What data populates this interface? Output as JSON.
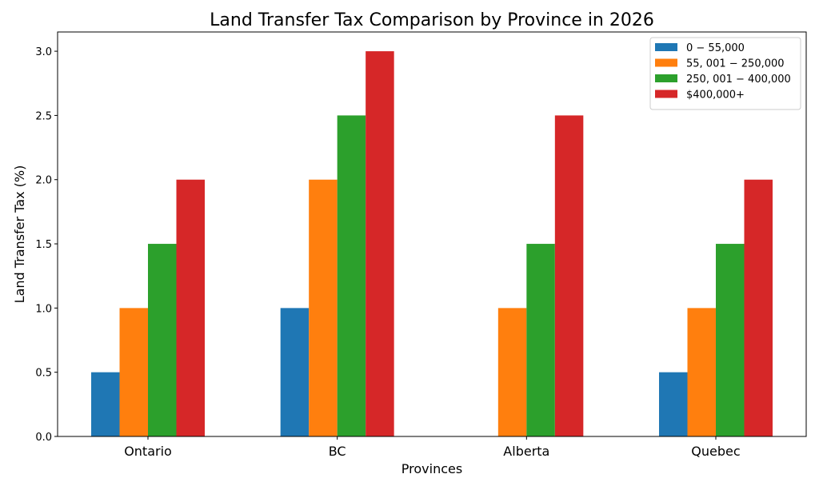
{
  "chart_data": {
    "type": "bar",
    "title": "Land Transfer Tax Comparison by Province in 2026",
    "xlabel": "Provinces",
    "ylabel": "Land Transfer Tax (%)",
    "categories": [
      "Ontario",
      "BC",
      "Alberta",
      "Quebec"
    ],
    "series": [
      {
        "name": "0 − 55,000",
        "color": "#1f77b4",
        "values": [
          0.5,
          1.0,
          0.0,
          0.5
        ]
      },
      {
        "name": "55, 001 − 250,000",
        "color": "#ff7f0e",
        "values": [
          1.0,
          2.0,
          1.0,
          1.0
        ]
      },
      {
        "name": "250, 001 − 400,000",
        "color": "#2ca02c",
        "values": [
          1.5,
          2.5,
          1.5,
          1.5
        ]
      },
      {
        "name": "$400,000+",
        "color": "#d62728",
        "values": [
          2.0,
          3.0,
          2.5,
          2.0
        ]
      }
    ],
    "ylim": [
      0,
      3.15
    ],
    "yticks": [
      "0.0",
      "0.5",
      "1.0",
      "1.5",
      "2.0",
      "2.5",
      "3.0"
    ],
    "grid": false,
    "legend": "top-right"
  }
}
